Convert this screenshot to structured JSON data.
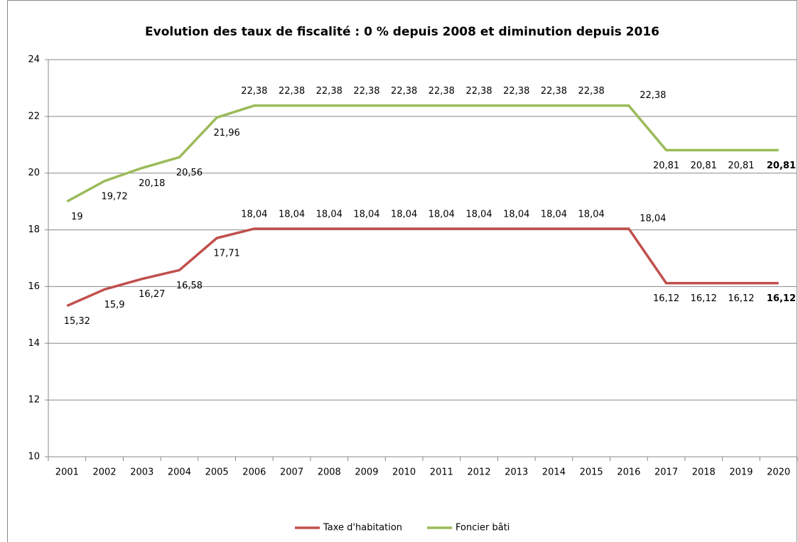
{
  "chart_data": {
    "type": "line",
    "title": "Evolution des taux de fiscalité : 0 % depuis 2008 et diminution depuis 2016",
    "categories": [
      "2001",
      "2002",
      "2003",
      "2004",
      "2005",
      "2006",
      "2007",
      "2008",
      "2009",
      "2010",
      "2011",
      "2012",
      "2013",
      "2014",
      "2015",
      "2016",
      "2017",
      "2018",
      "2019",
      "2020"
    ],
    "series": [
      {
        "name": "Taxe d'habitation",
        "color": "#c0504d",
        "values": [
          15.32,
          15.9,
          16.27,
          16.58,
          17.71,
          18.04,
          18.04,
          18.04,
          18.04,
          18.04,
          18.04,
          18.04,
          18.04,
          18.04,
          18.04,
          18.04,
          16.12,
          16.12,
          16.12,
          16.12
        ],
        "value_labels": [
          "15,32",
          "15,9",
          "16,27",
          "16,58",
          "17,71",
          "18,04",
          "18,04",
          "18,04",
          "18,04",
          "18,04",
          "18,04",
          "18,04",
          "18,04",
          "18,04",
          "18,04",
          "18,04",
          "16,12",
          "16,12",
          "16,12",
          "16,12"
        ]
      },
      {
        "name": "Foncier bâti",
        "color": "#9bbb59",
        "values": [
          19,
          19.72,
          20.18,
          20.56,
          21.96,
          22.38,
          22.38,
          22.38,
          22.38,
          22.38,
          22.38,
          22.38,
          22.38,
          22.38,
          22.38,
          22.38,
          20.81,
          20.81,
          20.81,
          20.81
        ],
        "value_labels": [
          "19",
          "19,72",
          "20,18",
          "20,56",
          "21,96",
          "22,38",
          "22,38",
          "22,38",
          "22,38",
          "22,38",
          "22,38",
          "22,38",
          "22,38",
          "22,38",
          "22,38",
          "22,38",
          "20,81",
          "20,81",
          "20,81",
          "20,81"
        ]
      }
    ],
    "ylim": [
      10,
      24
    ],
    "yticks": [
      10,
      12,
      14,
      16,
      18,
      20,
      22,
      24
    ],
    "grid": true,
    "legend": "bottom"
  }
}
